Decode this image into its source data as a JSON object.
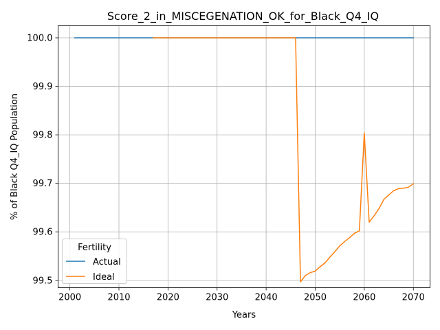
{
  "chart_data": {
    "type": "line",
    "title": "Score_2_in_MISCEGENATION_OK_for_Black_Q4_IQ",
    "xlabel": "Years",
    "ylabel": "% of Black Q4_IQ Population",
    "xlim": [
      1997.6,
      2073.4
    ],
    "ylim": [
      99.4848,
      100.0248
    ],
    "xticks": [
      2000,
      2010,
      2020,
      2030,
      2040,
      2050,
      2060,
      2070
    ],
    "yticks": [
      99.5,
      99.6,
      99.7,
      99.8,
      99.9,
      100.0
    ],
    "ytick_labels": [
      "99.5",
      "99.6",
      "99.7",
      "99.8",
      "99.9",
      "100.0"
    ],
    "grid": true,
    "legend": {
      "title": "Fertility",
      "placement": "lower-left"
    },
    "series": [
      {
        "name": "Actual",
        "color": "#1f77b4",
        "x": [
          2001,
          2070
        ],
        "y": [
          100.0,
          100.0
        ]
      },
      {
        "name": "Ideal",
        "color": "#ff7f0e",
        "x": [
          2017,
          2046,
          2047,
          2048,
          2049,
          2050,
          2051,
          2052,
          2053,
          2054,
          2055,
          2056,
          2057,
          2058,
          2059,
          2060,
          2061,
          2062,
          2063,
          2064,
          2065,
          2066,
          2067,
          2068,
          2069,
          2070
        ],
        "y": [
          100.0,
          100.0,
          99.497,
          99.51,
          99.516,
          99.519,
          99.528,
          99.536,
          99.548,
          99.559,
          99.571,
          99.58,
          99.588,
          99.597,
          99.602,
          99.804,
          99.62,
          99.633,
          99.648,
          99.667,
          99.676,
          99.685,
          99.689,
          99.69,
          99.692,
          99.699
        ]
      }
    ]
  }
}
